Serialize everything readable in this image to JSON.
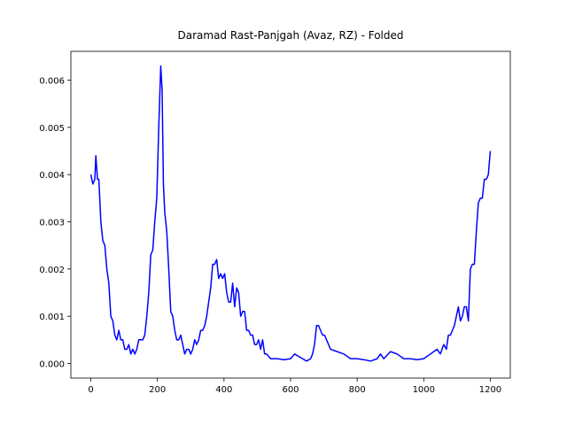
{
  "chart_data": {
    "type": "line",
    "title": "Daramad Rast-Panjgah (Avaz, RZ) - Folded",
    "x": [
      0,
      6,
      12,
      15,
      20,
      24,
      30,
      36,
      42,
      48,
      54,
      60,
      66,
      72,
      78,
      84,
      90,
      96,
      102,
      108,
      114,
      120,
      126,
      132,
      138,
      144,
      150,
      156,
      162,
      168,
      174,
      180,
      186,
      192,
      198,
      204,
      210,
      214,
      218,
      222,
      228,
      234,
      240,
      246,
      252,
      258,
      264,
      270,
      276,
      282,
      288,
      294,
      300,
      306,
      312,
      318,
      324,
      330,
      336,
      342,
      348,
      354,
      360,
      366,
      372,
      378,
      384,
      390,
      396,
      402,
      408,
      414,
      420,
      426,
      432,
      438,
      444,
      450,
      456,
      462,
      468,
      474,
      480,
      486,
      492,
      498,
      504,
      510,
      516,
      522,
      528,
      540,
      560,
      580,
      600,
      612,
      624,
      636,
      648,
      660,
      666,
      672,
      678,
      684,
      690,
      696,
      702,
      708,
      714,
      720,
      740,
      760,
      780,
      800,
      820,
      840,
      860,
      870,
      880,
      900,
      920,
      940,
      960,
      980,
      1000,
      1020,
      1040,
      1050,
      1060,
      1068,
      1074,
      1080,
      1086,
      1092,
      1098,
      1104,
      1110,
      1116,
      1122,
      1128,
      1134,
      1140,
      1146,
      1152,
      1158,
      1164,
      1170,
      1176,
      1182,
      1188,
      1194,
      1200
    ],
    "series": [
      {
        "color": "#0000ff",
        "values": [
          0.004,
          0.0038,
          0.0039,
          0.0044,
          0.0039,
          0.0039,
          0.003,
          0.0026,
          0.0025,
          0.002,
          0.0017,
          0.001,
          0.0009,
          0.0006,
          0.0005,
          0.0007,
          0.0005,
          0.0005,
          0.0003,
          0.0003,
          0.0004,
          0.0002,
          0.0003,
          0.0002,
          0.0003,
          0.0005,
          0.0005,
          0.0005,
          0.0006,
          0.001,
          0.0015,
          0.0023,
          0.0024,
          0.003,
          0.0035,
          0.005,
          0.0063,
          0.0058,
          0.0038,
          0.0032,
          0.0028,
          0.002,
          0.0011,
          0.001,
          0.0007,
          0.0005,
          0.0005,
          0.0006,
          0.0004,
          0.0002,
          0.0003,
          0.0003,
          0.0002,
          0.0003,
          0.0005,
          0.0004,
          0.0005,
          0.0007,
          0.0007,
          0.0008,
          0.001,
          0.0013,
          0.0016,
          0.0021,
          0.0021,
          0.0022,
          0.0018,
          0.0019,
          0.0018,
          0.0019,
          0.0015,
          0.0013,
          0.0013,
          0.0017,
          0.0012,
          0.0016,
          0.0015,
          0.001,
          0.0011,
          0.0011,
          0.0007,
          0.0007,
          0.0006,
          0.0006,
          0.0004,
          0.0004,
          0.0005,
          0.0003,
          0.0005,
          0.0002,
          0.0002,
          0.0001,
          0.0001,
          8e-05,
          0.0001,
          0.0002,
          0.00015,
          0.0001,
          5e-05,
          0.0001,
          0.0002,
          0.0004,
          0.0008,
          0.0008,
          0.0007,
          0.0006,
          0.0006,
          0.0005,
          0.0004,
          0.0003,
          0.00025,
          0.0002,
          0.0001,
          0.0001,
          8e-05,
          5e-05,
          0.0001,
          0.0002,
          0.0001,
          0.00025,
          0.0002,
          0.0001,
          0.0001,
          8e-05,
          0.0001,
          0.0002,
          0.0003,
          0.0002,
          0.0004,
          0.0003,
          0.0006,
          0.0006,
          0.0007,
          0.0008,
          0.001,
          0.0012,
          0.0009,
          0.001,
          0.0012,
          0.0012,
          0.0009,
          0.002,
          0.0021,
          0.0021,
          0.0028,
          0.0034,
          0.0035,
          0.0035,
          0.0039,
          0.0039,
          0.004,
          0.0045
        ]
      }
    ],
    "xlim": [
      -60,
      1260
    ],
    "ylim": [
      -0.00031,
      0.00661
    ],
    "xticks": [
      0,
      200,
      400,
      600,
      800,
      1000,
      1200
    ],
    "yticks": [
      {
        "value": 0,
        "label": "0.000"
      },
      {
        "value": 0.001,
        "label": "0.001"
      },
      {
        "value": 0.002,
        "label": "0.002"
      },
      {
        "value": 0.003,
        "label": "0.003"
      },
      {
        "value": 0.004,
        "label": "0.004"
      },
      {
        "value": 0.005,
        "label": "0.005"
      },
      {
        "value": 0.006,
        "label": "0.006"
      }
    ]
  }
}
